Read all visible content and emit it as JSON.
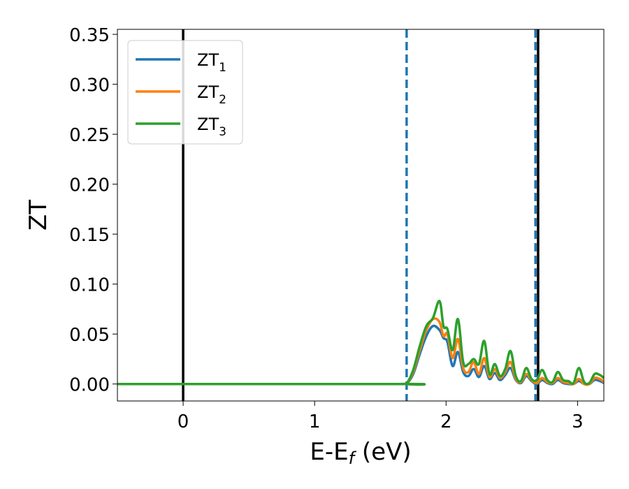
{
  "chart_data": {
    "type": "line",
    "title": "",
    "xlabel": {
      "main": "E-E",
      "sub": "f",
      "tail": " (eV)"
    },
    "ylabel": "ZT",
    "xlim": [
      -0.5,
      3.2
    ],
    "ylim": [
      -0.017,
      0.355
    ],
    "x_ticks": [
      0,
      1,
      2,
      3
    ],
    "x_tick_labels": [
      "0",
      "1",
      "2",
      "3"
    ],
    "y_ticks": [
      0.0,
      0.05,
      0.1,
      0.15,
      0.2,
      0.25,
      0.3,
      0.35
    ],
    "y_tick_labels": [
      "0.00",
      "0.05",
      "0.10",
      "0.15",
      "0.20",
      "0.25",
      "0.30",
      "0.35"
    ],
    "grid": false,
    "legend_position": "top-left",
    "vertical_lines": [
      {
        "x": 0.0,
        "style": "solid",
        "color": "#000000"
      },
      {
        "x": 1.7,
        "style": "dashed",
        "color": "#1f77b4"
      },
      {
        "x": 2.68,
        "style": "dashed",
        "color": "#1f77b4"
      },
      {
        "x": 2.7,
        "style": "solid",
        "color": "#000000"
      }
    ],
    "series": [
      {
        "name": "ZT",
        "name_sub": "1",
        "color": "#1f77b4",
        "x": [
          -0.5,
          1.65,
          1.7,
          1.75,
          1.8,
          1.85,
          1.9,
          1.95,
          1.98,
          2.01,
          2.05,
          2.09,
          2.13,
          2.17,
          2.21,
          2.25,
          2.29,
          2.33,
          2.37,
          2.41,
          2.45,
          2.49,
          2.53,
          2.57,
          2.61,
          2.65,
          2.69,
          2.73,
          2.77,
          2.81,
          2.85,
          2.89,
          2.93,
          2.97,
          3.01,
          3.05,
          3.09,
          3.13,
          3.17,
          3.2
        ],
        "y": [
          0.0,
          0.0,
          0.0005,
          0.01,
          0.03,
          0.048,
          0.058,
          0.054,
          0.046,
          0.042,
          0.018,
          0.032,
          0.012,
          0.008,
          0.015,
          0.007,
          0.018,
          0.005,
          0.011,
          0.004,
          0.009,
          0.016,
          0.004,
          0.001,
          0.008,
          0.003,
          0.0,
          0.004,
          0.001,
          0.0,
          0.004,
          0.001,
          0.0,
          0.0,
          0.003,
          0.0,
          0.0,
          0.004,
          0.003,
          0.001
        ]
      },
      {
        "name": "ZT",
        "name_sub": "2",
        "color": "#ff7f0e",
        "x": [
          -0.5,
          1.65,
          1.7,
          1.75,
          1.8,
          1.85,
          1.9,
          1.95,
          1.98,
          2.01,
          2.05,
          2.09,
          2.13,
          2.17,
          2.21,
          2.25,
          2.29,
          2.33,
          2.37,
          2.41,
          2.45,
          2.49,
          2.53,
          2.57,
          2.61,
          2.65,
          2.69,
          2.73,
          2.77,
          2.81,
          2.85,
          2.89,
          2.93,
          2.97,
          3.01,
          3.05,
          3.09,
          3.13,
          3.17,
          3.2
        ],
        "y": [
          0.0,
          0.0,
          0.0006,
          0.012,
          0.034,
          0.054,
          0.065,
          0.062,
          0.048,
          0.05,
          0.026,
          0.045,
          0.016,
          0.012,
          0.022,
          0.01,
          0.026,
          0.007,
          0.015,
          0.006,
          0.012,
          0.022,
          0.005,
          0.002,
          0.01,
          0.004,
          0.001,
          0.006,
          0.002,
          0.001,
          0.006,
          0.002,
          0.001,
          0.0,
          0.005,
          0.0,
          0.0,
          0.006,
          0.005,
          0.002
        ]
      },
      {
        "name": "ZT",
        "name_sub": "3",
        "color": "#2ca02c",
        "x": [
          -0.5,
          1.65,
          1.7,
          1.75,
          1.8,
          1.85,
          1.9,
          1.95,
          1.98,
          2.01,
          2.05,
          2.09,
          2.13,
          2.17,
          2.21,
          2.25,
          2.29,
          2.33,
          2.37,
          2.41,
          2.45,
          2.49,
          2.53,
          2.57,
          2.61,
          2.65,
          2.69,
          2.73,
          2.77,
          2.81,
          2.85,
          2.89,
          2.93,
          2.97,
          3.01,
          3.05,
          3.09,
          3.13,
          3.17,
          3.2
        ],
        "y": [
          0.0,
          0.0,
          0.0008,
          0.014,
          0.038,
          0.058,
          0.066,
          0.083,
          0.058,
          0.055,
          0.034,
          0.065,
          0.022,
          0.02,
          0.025,
          0.02,
          0.043,
          0.01,
          0.02,
          0.008,
          0.015,
          0.033,
          0.008,
          0.003,
          0.016,
          0.005,
          0.004,
          0.014,
          0.004,
          0.002,
          0.012,
          0.004,
          0.003,
          0.001,
          0.016,
          0.002,
          0.001,
          0.01,
          0.009,
          0.006
        ]
      }
    ]
  }
}
